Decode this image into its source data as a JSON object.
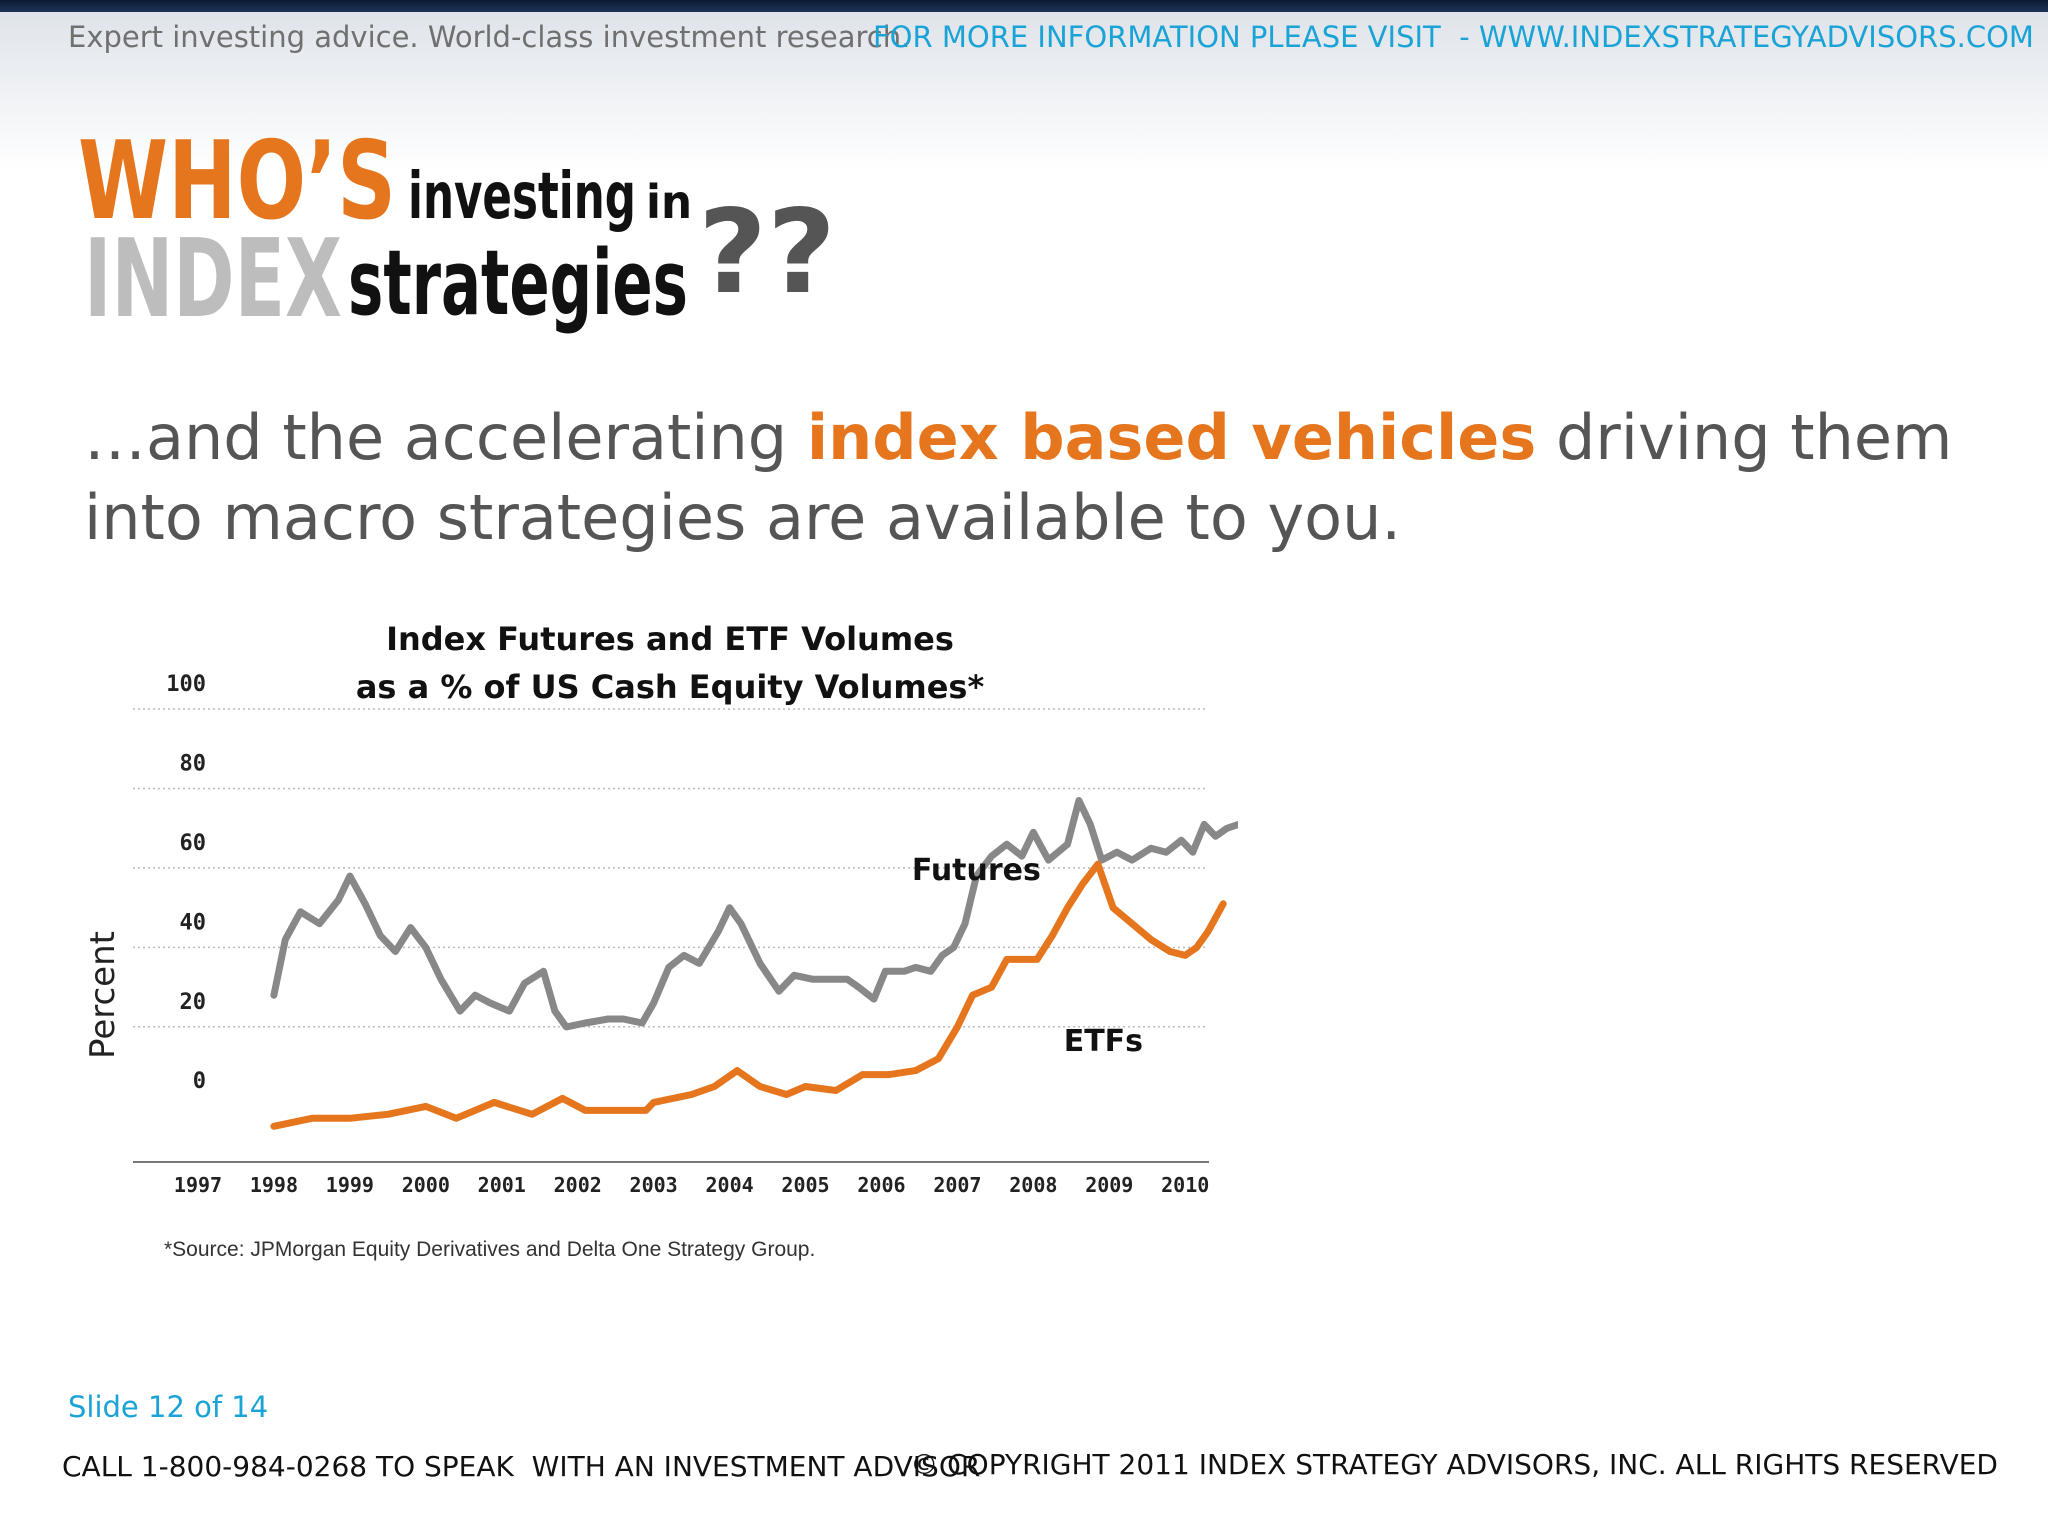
{
  "header": {
    "tagline": "Expert investing advice. World-class investment research.",
    "visit": "FOR MORE INFORMATION PLEASE VISIT  - WWW.INDEXSTRATEGYADVISORS.COM"
  },
  "logo": {
    "whos": "WHO’S",
    "investing": "investing",
    "in": "in",
    "index": "INDEX",
    "strategies": "strategies",
    "marks": "??",
    "colors": {
      "orange": "#e6761e",
      "gray": "#bdbdbd",
      "black": "#111111",
      "mark_gray": "#555555"
    }
  },
  "subhead": {
    "part1": "…and the accelerating ",
    "highlight": "index based vehicles",
    "part2": " driving them into macro strategies are available to you."
  },
  "chart_data": {
    "type": "line",
    "title_line1": "Index Futures and ETF Volumes",
    "title_line2": "as a % of US Cash Equity Volumes*",
    "ylabel": "Percent",
    "xlabel": "",
    "y_ticks": [
      0,
      20,
      40,
      60,
      80,
      100
    ],
    "x_ticks": [
      "1997",
      "1998",
      "1999",
      "2000",
      "2001",
      "2002",
      "2003",
      "2004",
      "2005",
      "2006",
      "2007",
      "2008",
      "2009",
      "2010"
    ],
    "xlim": [
      1997,
      2010.3
    ],
    "ylim": [
      -8,
      100
    ],
    "grid": true,
    "source": "*Source: JPMorgan Equity Derivatives and Delta One Strategy Group.",
    "series": [
      {
        "name": "Futures",
        "color": "#888888",
        "points": [
          [
            1998,
            34
          ],
          [
            1998.15,
            48
          ],
          [
            1998.35,
            55
          ],
          [
            1998.6,
            52
          ],
          [
            1998.85,
            58
          ],
          [
            1999.0,
            64
          ],
          [
            1999.2,
            57
          ],
          [
            1999.4,
            49
          ],
          [
            1999.6,
            45
          ],
          [
            1999.8,
            51
          ],
          [
            2000.0,
            46
          ],
          [
            2000.2,
            38
          ],
          [
            2000.45,
            30
          ],
          [
            2000.65,
            34
          ],
          [
            2000.85,
            32
          ],
          [
            2001.1,
            30
          ],
          [
            2001.3,
            37
          ],
          [
            2001.55,
            40
          ],
          [
            2001.7,
            30
          ],
          [
            2001.85,
            26
          ],
          [
            2002.1,
            27
          ],
          [
            2002.4,
            28
          ],
          [
            2002.6,
            28
          ],
          [
            2002.85,
            27
          ],
          [
            2003.0,
            32
          ],
          [
            2003.2,
            41
          ],
          [
            2003.4,
            44
          ],
          [
            2003.6,
            42
          ],
          [
            2003.85,
            50
          ],
          [
            2004.0,
            56
          ],
          [
            2004.15,
            52
          ],
          [
            2004.4,
            42
          ],
          [
            2004.65,
            35
          ],
          [
            2004.85,
            39
          ],
          [
            2005.1,
            38
          ],
          [
            2005.4,
            38
          ],
          [
            2005.55,
            38
          ],
          [
            2005.7,
            36
          ],
          [
            2005.9,
            33
          ],
          [
            2006.05,
            40
          ],
          [
            2006.3,
            40
          ],
          [
            2006.45,
            41
          ],
          [
            2006.65,
            40
          ],
          [
            2006.8,
            44
          ],
          [
            2006.95,
            46
          ],
          [
            2007.1,
            52
          ],
          [
            2007.25,
            64
          ],
          [
            2007.45,
            69
          ],
          [
            2007.65,
            72
          ],
          [
            2007.85,
            69
          ],
          [
            2008.0,
            75
          ],
          [
            2008.2,
            68
          ],
          [
            2008.45,
            72
          ],
          [
            2008.6,
            83
          ],
          [
            2008.75,
            77
          ],
          [
            2008.9,
            68
          ],
          [
            2009.1,
            70
          ],
          [
            2009.3,
            68
          ],
          [
            2009.55,
            71
          ],
          [
            2009.75,
            70
          ],
          [
            2009.95,
            73
          ],
          [
            2010.1,
            70
          ],
          [
            2010.25,
            77
          ],
          [
            2010.4,
            74
          ],
          [
            2010.55,
            76
          ],
          [
            2010.7,
            77
          ]
        ]
      },
      {
        "name": "ETFs",
        "color": "#e6761e",
        "points": [
          [
            1998,
            1
          ],
          [
            1998.5,
            3
          ],
          [
            1999.0,
            3
          ],
          [
            1999.5,
            4
          ],
          [
            2000.0,
            6
          ],
          [
            2000.4,
            3
          ],
          [
            2000.9,
            7
          ],
          [
            2001.4,
            4
          ],
          [
            2001.8,
            8
          ],
          [
            2002.1,
            5
          ],
          [
            2002.5,
            5
          ],
          [
            2002.9,
            5
          ],
          [
            2003.0,
            7
          ],
          [
            2003.5,
            9
          ],
          [
            2003.8,
            11
          ],
          [
            2004.1,
            15
          ],
          [
            2004.4,
            11
          ],
          [
            2004.75,
            9
          ],
          [
            2005.0,
            11
          ],
          [
            2005.4,
            10
          ],
          [
            2005.75,
            14
          ],
          [
            2006.1,
            14
          ],
          [
            2006.45,
            15
          ],
          [
            2006.75,
            18
          ],
          [
            2007.0,
            26
          ],
          [
            2007.2,
            34
          ],
          [
            2007.45,
            36
          ],
          [
            2007.65,
            43
          ],
          [
            2007.85,
            43
          ],
          [
            2008.05,
            43
          ],
          [
            2008.25,
            49
          ],
          [
            2008.45,
            56
          ],
          [
            2008.65,
            62
          ],
          [
            2008.85,
            67
          ],
          [
            2009.05,
            56
          ],
          [
            2009.3,
            52
          ],
          [
            2009.55,
            48
          ],
          [
            2009.8,
            45
          ],
          [
            2010.0,
            44
          ],
          [
            2010.15,
            46
          ],
          [
            2010.3,
            50
          ],
          [
            2010.5,
            57
          ]
        ]
      }
    ],
    "annotations": [
      {
        "text": "Futures",
        "x": 2006.4,
        "y": 63
      },
      {
        "text": "ETFs",
        "x": 2008.4,
        "y": 20
      }
    ]
  },
  "footer": {
    "slide": "Slide 12 of 14",
    "call": "CALL 1-800-984-0268 TO SPEAK  WITH AN INVESTMENT ADVISOR",
    "copyright": "© COPYRIGHT 2011 INDEX STRATEGY ADVISORS, INC. ALL RIGHTS RESERVED"
  }
}
